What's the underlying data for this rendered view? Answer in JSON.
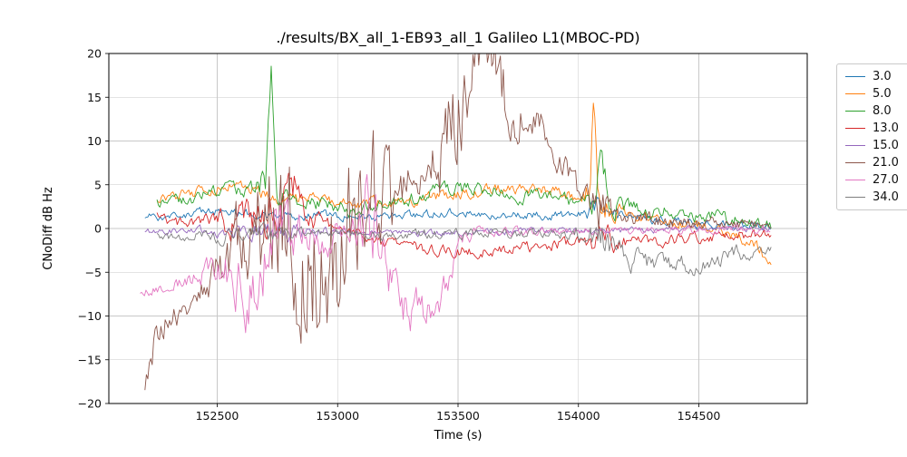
{
  "chart_data": {
    "type": "line",
    "title": "./results/BX_all_1-EB93_all_1 Galileo L1(MBOC-PD)",
    "xlabel": "Time (s)",
    "ylabel": "CNoDiff dB Hz",
    "xlim": [
      152050,
      154950
    ],
    "ylim": [
      -20,
      20
    ],
    "xticks": [
      152500,
      153000,
      153500,
      154000,
      154500
    ],
    "yticks": [
      -20,
      -15,
      -10,
      -5,
      0,
      5,
      10,
      15,
      20
    ],
    "grid": true,
    "legend_position": "outside-upper-right",
    "series": [
      {
        "name": "3.0",
        "color": "#1f77b4",
        "noise": 0.45,
        "anchors": [
          [
            152200,
            1.2
          ],
          [
            152350,
            1.6
          ],
          [
            152500,
            2.0
          ],
          [
            152650,
            1.6
          ],
          [
            152800,
            1.4
          ],
          [
            152950,
            1.6
          ],
          [
            153100,
            1.2
          ],
          [
            153250,
            1.4
          ],
          [
            153400,
            1.7
          ],
          [
            153550,
            1.8
          ],
          [
            153700,
            1.6
          ],
          [
            153850,
            1.5
          ],
          [
            154000,
            1.6
          ],
          [
            154080,
            2.0,
            1.2
          ],
          [
            154200,
            1.2
          ],
          [
            154350,
            0.9
          ],
          [
            154500,
            0.6
          ],
          [
            154650,
            0.3
          ],
          [
            154800,
            0.1
          ]
        ]
      },
      {
        "name": "5.0",
        "color": "#ff7f0e",
        "noise": 0.6,
        "anchors": [
          [
            152250,
            3.6
          ],
          [
            152400,
            4.2
          ],
          [
            152550,
            4.9
          ],
          [
            152650,
            4.5
          ],
          [
            152750,
            3.2
          ],
          [
            152850,
            3.4
          ],
          [
            152950,
            3.3
          ],
          [
            153050,
            2.6
          ],
          [
            153150,
            3.0
          ],
          [
            153300,
            3.2
          ],
          [
            153450,
            3.8
          ],
          [
            153600,
            4.3
          ],
          [
            153750,
            4.6
          ],
          [
            153900,
            4.4
          ],
          [
            154000,
            3.4
          ],
          [
            154050,
            4.0,
            2.0
          ],
          [
            154065,
            16.0,
            1.5
          ],
          [
            154080,
            3.0,
            2.0
          ],
          [
            154200,
            1.6
          ],
          [
            154350,
            0.8
          ],
          [
            154500,
            0.2
          ],
          [
            154650,
            -0.8
          ],
          [
            154750,
            -2.0,
            0.8
          ],
          [
            154800,
            -4.6,
            0.5
          ]
        ]
      },
      {
        "name": "8.0",
        "color": "#2ca02c",
        "noise": 0.7,
        "anchors": [
          [
            152250,
            3.0
          ],
          [
            152400,
            3.6
          ],
          [
            152520,
            4.6
          ],
          [
            152620,
            4.2
          ],
          [
            152700,
            5.0,
            2.0
          ],
          [
            152725,
            19.0,
            2.0
          ],
          [
            152750,
            4.0,
            1.5
          ],
          [
            152850,
            3.2
          ],
          [
            152950,
            2.8
          ],
          [
            153050,
            2.2
          ],
          [
            153150,
            2.4
          ],
          [
            153300,
            3.4
          ],
          [
            153450,
            4.6
          ],
          [
            153600,
            4.4
          ],
          [
            153750,
            3.6
          ],
          [
            153900,
            4.0
          ],
          [
            154000,
            2.6
          ],
          [
            154060,
            2.4,
            1.5
          ],
          [
            154095,
            10.0,
            2.0
          ],
          [
            154130,
            2.6,
            1.5
          ],
          [
            154250,
            2.2
          ],
          [
            154400,
            1.9
          ],
          [
            154550,
            1.4
          ],
          [
            154700,
            0.7
          ],
          [
            154800,
            0.2
          ]
        ]
      },
      {
        "name": "13.0",
        "color": "#d62728",
        "noise": 0.6,
        "anchors": [
          [
            152250,
            1.4
          ],
          [
            152350,
            0.6
          ],
          [
            152450,
            1.0
          ],
          [
            152550,
            0.6,
            1.5
          ],
          [
            152650,
            0.4,
            2.2
          ],
          [
            152750,
            1.8,
            2.2
          ],
          [
            152820,
            4.5,
            2.0
          ],
          [
            152880,
            1.2,
            1.5
          ],
          [
            152980,
            0.4
          ],
          [
            153080,
            -0.6
          ],
          [
            153180,
            -1.6
          ],
          [
            153300,
            -2.2
          ],
          [
            153450,
            -2.6
          ],
          [
            153600,
            -2.5
          ],
          [
            153750,
            -2.2
          ],
          [
            153900,
            -1.8
          ],
          [
            154000,
            -1.6
          ],
          [
            154080,
            -1.2,
            1.8
          ],
          [
            154200,
            -1.6
          ],
          [
            154350,
            -1.4
          ],
          [
            154500,
            -1.0
          ],
          [
            154650,
            -0.7
          ],
          [
            154800,
            -0.6
          ]
        ]
      },
      {
        "name": "15.0",
        "color": "#9467bd",
        "noise": 0.35,
        "anchors": [
          [
            152200,
            -0.3
          ],
          [
            152400,
            -0.2
          ],
          [
            152600,
            -0.4,
            0.9
          ],
          [
            152800,
            -0.4,
            0.9
          ],
          [
            153000,
            -0.3
          ],
          [
            153200,
            -0.5
          ],
          [
            153400,
            -0.5
          ],
          [
            153600,
            -0.4
          ],
          [
            153800,
            -0.3
          ],
          [
            154000,
            -0.3
          ],
          [
            154200,
            -0.2
          ],
          [
            154400,
            -0.1
          ],
          [
            154600,
            -0.1
          ],
          [
            154800,
            0.0
          ]
        ]
      },
      {
        "name": "21.0",
        "color": "#8c564b",
        "noise": 1.0,
        "anchors": [
          [
            152200,
            -18.0,
            1.5
          ],
          [
            152240,
            -13.0,
            2.0
          ],
          [
            152300,
            -10.5,
            1.5
          ],
          [
            152380,
            -9.5,
            1.2
          ],
          [
            152450,
            -7.0,
            1.5
          ],
          [
            152520,
            -4.0,
            2.5
          ],
          [
            152600,
            -0.5,
            5.0
          ],
          [
            152680,
            2.0,
            7.0
          ],
          [
            152760,
            0.0,
            7.5
          ],
          [
            152840,
            -1.0,
            8.0
          ],
          [
            152900,
            -4.0,
            8.0
          ],
          [
            152960,
            -6.0,
            7.0
          ],
          [
            153020,
            -2.0,
            7.0
          ],
          [
            153080,
            4.0,
            7.0
          ],
          [
            153150,
            4.0,
            8.0
          ],
          [
            153220,
            3.0,
            4.0
          ],
          [
            153300,
            4.5,
            2.5
          ],
          [
            153380,
            6.0,
            2.5
          ],
          [
            153450,
            9.0,
            5.0
          ],
          [
            153520,
            16.0,
            5.0
          ],
          [
            153580,
            21.0,
            3.0
          ],
          [
            153650,
            19.0,
            4.0
          ],
          [
            153720,
            13.0,
            3.0
          ],
          [
            153800,
            12.5,
            2.0
          ],
          [
            153880,
            10.0,
            2.0
          ],
          [
            153950,
            6.5,
            1.5
          ],
          [
            154020,
            3.5,
            1.5
          ],
          [
            154080,
            2.5,
            3.0
          ],
          [
            154150,
            1.5,
            1.0
          ],
          [
            154250,
            1.0,
            0.8
          ],
          [
            154400,
            0.7,
            0.7
          ],
          [
            154550,
            0.6,
            0.6
          ],
          [
            154700,
            0.4,
            0.5
          ],
          [
            154800,
            0.3,
            0.5
          ]
        ]
      },
      {
        "name": "27.0",
        "color": "#e377c2",
        "noise": 0.5,
        "anchors": [
          [
            152180,
            -7.4,
            0.5
          ],
          [
            152300,
            -6.6,
            0.6
          ],
          [
            152400,
            -5.8,
            0.8
          ],
          [
            152500,
            -4.5,
            1.5
          ],
          [
            152570,
            -5.5,
            3.0
          ],
          [
            152640,
            -8.0,
            3.5
          ],
          [
            152700,
            -3.0,
            3.5
          ],
          [
            152760,
            -0.5,
            3.0
          ],
          [
            152850,
            -0.5,
            2.5
          ],
          [
            152950,
            -1.2,
            1.8
          ],
          [
            153050,
            -0.4,
            1.2
          ],
          [
            153120,
            1.0,
            4.0
          ],
          [
            153160,
            4.0,
            6.0
          ],
          [
            153200,
            -3.0,
            3.0
          ],
          [
            153260,
            -8.5,
            2.5
          ],
          [
            153330,
            -9.5,
            2.2
          ],
          [
            153400,
            -9.0,
            2.0
          ],
          [
            153460,
            -5.5,
            2.0
          ],
          [
            153510,
            -1.0,
            1.0
          ],
          [
            153600,
            -0.4,
            0.5
          ],
          [
            153800,
            -0.3,
            0.45
          ],
          [
            154100,
            -0.3,
            0.4
          ],
          [
            154400,
            -0.2,
            0.4
          ],
          [
            154700,
            -0.1,
            0.4
          ],
          [
            154800,
            0.0,
            0.4
          ]
        ]
      },
      {
        "name": "34.0",
        "color": "#7f7f7f",
        "noise": 0.5,
        "anchors": [
          [
            152250,
            -1.0
          ],
          [
            152400,
            -0.8
          ],
          [
            152550,
            -0.8,
            0.9
          ],
          [
            152700,
            -0.6,
            0.9
          ],
          [
            152850,
            -0.6
          ],
          [
            153000,
            -0.6
          ],
          [
            153150,
            -0.8
          ],
          [
            153300,
            -0.7
          ],
          [
            153450,
            -0.6
          ],
          [
            153600,
            -0.6
          ],
          [
            153750,
            -0.6
          ],
          [
            153900,
            -0.6
          ],
          [
            154020,
            -0.7,
            1.0
          ],
          [
            154100,
            -1.5,
            2.0
          ],
          [
            154180,
            -2.8,
            1.5
          ],
          [
            154280,
            -3.8,
            1.2
          ],
          [
            154400,
            -4.3,
            1.0
          ],
          [
            154500,
            -4.0,
            1.0
          ],
          [
            154600,
            -3.2,
            0.9
          ],
          [
            154700,
            -2.6,
            0.8
          ],
          [
            154800,
            -2.1,
            0.5
          ]
        ]
      }
    ]
  }
}
